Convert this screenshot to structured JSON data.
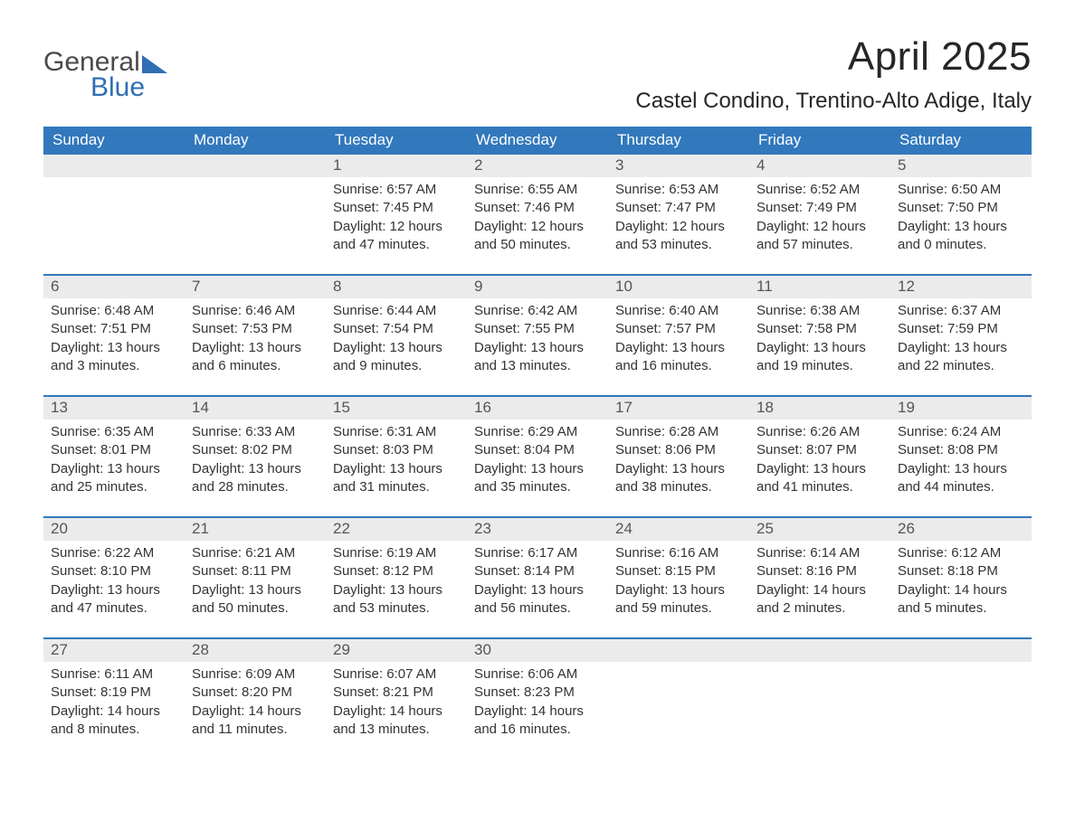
{
  "logo": {
    "word1": "General",
    "word2": "Blue"
  },
  "title": "April 2025",
  "location": "Castel Condino, Trentino-Alto Adige, Italy",
  "colors": {
    "header_bg": "#3178bc",
    "header_text": "#ffffff",
    "daynum_bg": "#ebebeb",
    "week_rule": "#3178bc",
    "body_text": "#333333",
    "logo_gray": "#4a4a4a",
    "logo_blue": "#2f6eb5",
    "page_bg": "#ffffff"
  },
  "typography": {
    "title_fontsize": 44,
    "location_fontsize": 24,
    "dayheader_fontsize": 17,
    "daynum_fontsize": 17,
    "cell_fontsize": 15,
    "logo_fontsize": 30
  },
  "day_names": [
    "Sunday",
    "Monday",
    "Tuesday",
    "Wednesday",
    "Thursday",
    "Friday",
    "Saturday"
  ],
  "weeks": [
    [
      {
        "num": "",
        "sunrise": "",
        "sunset": "",
        "daylight": ""
      },
      {
        "num": "",
        "sunrise": "",
        "sunset": "",
        "daylight": ""
      },
      {
        "num": "1",
        "sunrise": "Sunrise: 6:57 AM",
        "sunset": "Sunset: 7:45 PM",
        "daylight": "Daylight: 12 hours and 47 minutes."
      },
      {
        "num": "2",
        "sunrise": "Sunrise: 6:55 AM",
        "sunset": "Sunset: 7:46 PM",
        "daylight": "Daylight: 12 hours and 50 minutes."
      },
      {
        "num": "3",
        "sunrise": "Sunrise: 6:53 AM",
        "sunset": "Sunset: 7:47 PM",
        "daylight": "Daylight: 12 hours and 53 minutes."
      },
      {
        "num": "4",
        "sunrise": "Sunrise: 6:52 AM",
        "sunset": "Sunset: 7:49 PM",
        "daylight": "Daylight: 12 hours and 57 minutes."
      },
      {
        "num": "5",
        "sunrise": "Sunrise: 6:50 AM",
        "sunset": "Sunset: 7:50 PM",
        "daylight": "Daylight: 13 hours and 0 minutes."
      }
    ],
    [
      {
        "num": "6",
        "sunrise": "Sunrise: 6:48 AM",
        "sunset": "Sunset: 7:51 PM",
        "daylight": "Daylight: 13 hours and 3 minutes."
      },
      {
        "num": "7",
        "sunrise": "Sunrise: 6:46 AM",
        "sunset": "Sunset: 7:53 PM",
        "daylight": "Daylight: 13 hours and 6 minutes."
      },
      {
        "num": "8",
        "sunrise": "Sunrise: 6:44 AM",
        "sunset": "Sunset: 7:54 PM",
        "daylight": "Daylight: 13 hours and 9 minutes."
      },
      {
        "num": "9",
        "sunrise": "Sunrise: 6:42 AM",
        "sunset": "Sunset: 7:55 PM",
        "daylight": "Daylight: 13 hours and 13 minutes."
      },
      {
        "num": "10",
        "sunrise": "Sunrise: 6:40 AM",
        "sunset": "Sunset: 7:57 PM",
        "daylight": "Daylight: 13 hours and 16 minutes."
      },
      {
        "num": "11",
        "sunrise": "Sunrise: 6:38 AM",
        "sunset": "Sunset: 7:58 PM",
        "daylight": "Daylight: 13 hours and 19 minutes."
      },
      {
        "num": "12",
        "sunrise": "Sunrise: 6:37 AM",
        "sunset": "Sunset: 7:59 PM",
        "daylight": "Daylight: 13 hours and 22 minutes."
      }
    ],
    [
      {
        "num": "13",
        "sunrise": "Sunrise: 6:35 AM",
        "sunset": "Sunset: 8:01 PM",
        "daylight": "Daylight: 13 hours and 25 minutes."
      },
      {
        "num": "14",
        "sunrise": "Sunrise: 6:33 AM",
        "sunset": "Sunset: 8:02 PM",
        "daylight": "Daylight: 13 hours and 28 minutes."
      },
      {
        "num": "15",
        "sunrise": "Sunrise: 6:31 AM",
        "sunset": "Sunset: 8:03 PM",
        "daylight": "Daylight: 13 hours and 31 minutes."
      },
      {
        "num": "16",
        "sunrise": "Sunrise: 6:29 AM",
        "sunset": "Sunset: 8:04 PM",
        "daylight": "Daylight: 13 hours and 35 minutes."
      },
      {
        "num": "17",
        "sunrise": "Sunrise: 6:28 AM",
        "sunset": "Sunset: 8:06 PM",
        "daylight": "Daylight: 13 hours and 38 minutes."
      },
      {
        "num": "18",
        "sunrise": "Sunrise: 6:26 AM",
        "sunset": "Sunset: 8:07 PM",
        "daylight": "Daylight: 13 hours and 41 minutes."
      },
      {
        "num": "19",
        "sunrise": "Sunrise: 6:24 AM",
        "sunset": "Sunset: 8:08 PM",
        "daylight": "Daylight: 13 hours and 44 minutes."
      }
    ],
    [
      {
        "num": "20",
        "sunrise": "Sunrise: 6:22 AM",
        "sunset": "Sunset: 8:10 PM",
        "daylight": "Daylight: 13 hours and 47 minutes."
      },
      {
        "num": "21",
        "sunrise": "Sunrise: 6:21 AM",
        "sunset": "Sunset: 8:11 PM",
        "daylight": "Daylight: 13 hours and 50 minutes."
      },
      {
        "num": "22",
        "sunrise": "Sunrise: 6:19 AM",
        "sunset": "Sunset: 8:12 PM",
        "daylight": "Daylight: 13 hours and 53 minutes."
      },
      {
        "num": "23",
        "sunrise": "Sunrise: 6:17 AM",
        "sunset": "Sunset: 8:14 PM",
        "daylight": "Daylight: 13 hours and 56 minutes."
      },
      {
        "num": "24",
        "sunrise": "Sunrise: 6:16 AM",
        "sunset": "Sunset: 8:15 PM",
        "daylight": "Daylight: 13 hours and 59 minutes."
      },
      {
        "num": "25",
        "sunrise": "Sunrise: 6:14 AM",
        "sunset": "Sunset: 8:16 PM",
        "daylight": "Daylight: 14 hours and 2 minutes."
      },
      {
        "num": "26",
        "sunrise": "Sunrise: 6:12 AM",
        "sunset": "Sunset: 8:18 PM",
        "daylight": "Daylight: 14 hours and 5 minutes."
      }
    ],
    [
      {
        "num": "27",
        "sunrise": "Sunrise: 6:11 AM",
        "sunset": "Sunset: 8:19 PM",
        "daylight": "Daylight: 14 hours and 8 minutes."
      },
      {
        "num": "28",
        "sunrise": "Sunrise: 6:09 AM",
        "sunset": "Sunset: 8:20 PM",
        "daylight": "Daylight: 14 hours and 11 minutes."
      },
      {
        "num": "29",
        "sunrise": "Sunrise: 6:07 AM",
        "sunset": "Sunset: 8:21 PM",
        "daylight": "Daylight: 14 hours and 13 minutes."
      },
      {
        "num": "30",
        "sunrise": "Sunrise: 6:06 AM",
        "sunset": "Sunset: 8:23 PM",
        "daylight": "Daylight: 14 hours and 16 minutes."
      },
      {
        "num": "",
        "sunrise": "",
        "sunset": "",
        "daylight": ""
      },
      {
        "num": "",
        "sunrise": "",
        "sunset": "",
        "daylight": ""
      },
      {
        "num": "",
        "sunrise": "",
        "sunset": "",
        "daylight": ""
      }
    ]
  ]
}
